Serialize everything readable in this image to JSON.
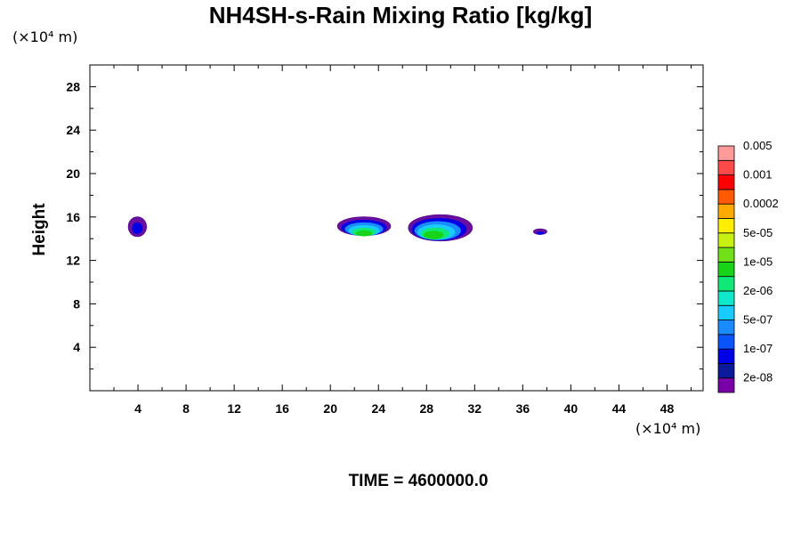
{
  "chart_data": {
    "type": "heatmap",
    "title": "NH4SH-s-Rain Mixing Ratio [kg/kg]",
    "ylabel": "Height",
    "x_unit": "(×10⁴ m)",
    "y_unit": "(×10⁴ m)",
    "xlim": [
      0,
      51
    ],
    "ylim": [
      0,
      30
    ],
    "x_ticks": [
      4,
      8,
      12,
      16,
      20,
      24,
      28,
      32,
      36,
      40,
      44,
      48
    ],
    "y_ticks": [
      4,
      8,
      12,
      16,
      20,
      24,
      28
    ],
    "colorbar": {
      "colors": [
        "#7a00a8",
        "#0a1a9a",
        "#0000e6",
        "#0a55ff",
        "#1a8cff",
        "#19ccff",
        "#10e8cc",
        "#10e878",
        "#18d418",
        "#70e018",
        "#c8f010",
        "#ffee00",
        "#ffaa00",
        "#ff5a00",
        "#ff0000",
        "#ff4a4a",
        "#ff9a9a"
      ],
      "labels": [
        "2e-08",
        "1e-07",
        "5e-07",
        "2e-06",
        "1e-05",
        "5e-05",
        "0.0002",
        "0.001",
        "0.005"
      ]
    },
    "regions": [
      {
        "x_range": [
          3.2,
          4.7
        ],
        "y_range": [
          14.2,
          16.0
        ],
        "max_level": "2e-08"
      },
      {
        "x_range": [
          20.6,
          25.0
        ],
        "y_range": [
          14.3,
          16.0
        ],
        "max_level": "2e-06"
      },
      {
        "x_range": [
          26.5,
          31.8
        ],
        "y_range": [
          13.8,
          16.2
        ],
        "max_level": "1e-05"
      },
      {
        "x_range": [
          36.9,
          38.0
        ],
        "y_range": [
          14.4,
          14.9
        ],
        "max_level": "2e-08"
      }
    ]
  },
  "footer": {
    "time_label": "TIME = 4600000.0"
  }
}
